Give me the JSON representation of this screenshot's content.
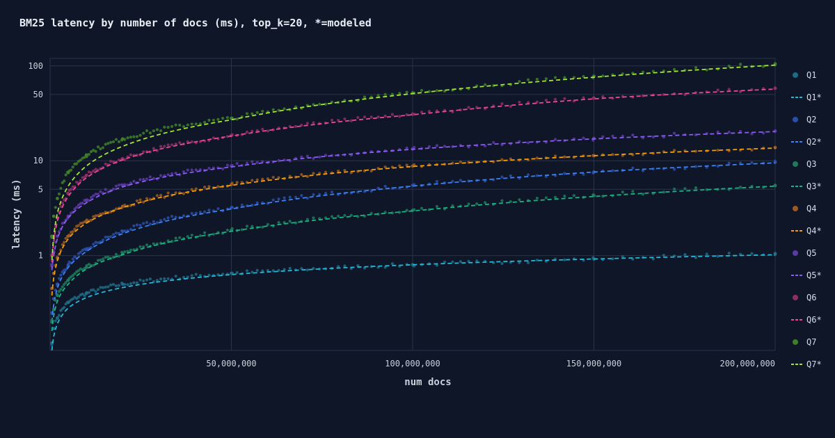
{
  "chart_data": {
    "type": "scatter",
    "title": "BM25 latency by number of docs (ms), top_k=20, *=modeled",
    "xlabel": "num docs",
    "ylabel": "latency (ms)",
    "x_scale": "linear",
    "y_scale": "log",
    "xlim": [
      0,
      200000000
    ],
    "ylim": [
      0.1,
      120
    ],
    "x_ticks": [
      50000000,
      100000000,
      150000000,
      200000000
    ],
    "x_tick_labels": [
      "50,000,000",
      "100,000,000",
      "150,000,000",
      "200,000,000"
    ],
    "y_ticks": [
      1,
      5,
      10,
      50,
      100
    ],
    "y_tick_labels": [
      "1",
      "5",
      "10",
      "50",
      "100"
    ],
    "grid": true,
    "legend_position": "right",
    "legend": [
      "Q1",
      "Q1*",
      "Q2",
      "Q2*",
      "Q3",
      "Q3*",
      "Q4",
      "Q4*",
      "Q5",
      "Q5*",
      "Q6",
      "Q6*",
      "Q7",
      "Q7*"
    ],
    "x": [
      500000,
      1000000,
      2000000,
      5000000,
      10000000,
      20000000,
      50000000,
      100000000,
      150000000,
      200000000
    ],
    "series": [
      {
        "name": "Q1",
        "kind": "points",
        "color": "#1f6b85",
        "values": [
          0.12,
          0.17,
          0.22,
          0.32,
          0.4,
          0.5,
          0.65,
          0.8,
          0.92,
          1.05
        ]
      },
      {
        "name": "Q1*",
        "kind": "modeled",
        "color": "#22b8d8",
        "values": [
          0.1,
          0.14,
          0.19,
          0.28,
          0.36,
          0.46,
          0.63,
          0.8,
          0.92,
          1.02
        ]
      },
      {
        "name": "Q2",
        "kind": "points",
        "color": "#2a4fa8",
        "values": [
          0.25,
          0.35,
          0.5,
          0.8,
          1.15,
          1.8,
          3.2,
          5.5,
          7.6,
          9.6
        ]
      },
      {
        "name": "Q2*",
        "kind": "modeled",
        "color": "#3b82f6",
        "values": [
          0.2,
          0.3,
          0.45,
          0.75,
          1.1,
          1.7,
          3.1,
          5.4,
          7.6,
          9.5
        ]
      },
      {
        "name": "Q3",
        "kind": "points",
        "color": "#1f7a5c",
        "values": [
          0.2,
          0.27,
          0.38,
          0.55,
          0.75,
          1.05,
          1.85,
          3.0,
          4.3,
          5.5
        ]
      },
      {
        "name": "Q3*",
        "kind": "modeled",
        "color": "#18b388",
        "values": [
          0.16,
          0.23,
          0.33,
          0.5,
          0.72,
          1.02,
          1.8,
          2.95,
          4.2,
          5.4
        ]
      },
      {
        "name": "Q4",
        "kind": "points",
        "color": "#9a5a22",
        "values": [
          0.45,
          0.65,
          0.95,
          1.6,
          2.3,
          3.3,
          5.6,
          8.8,
          11.3,
          13.8
        ]
      },
      {
        "name": "Q4*",
        "kind": "modeled",
        "color": "#f59e0b",
        "values": [
          0.38,
          0.58,
          0.88,
          1.5,
          2.2,
          3.2,
          5.5,
          8.7,
          11.3,
          13.6
        ]
      },
      {
        "name": "Q5",
        "kind": "points",
        "color": "#5b3aa6",
        "values": [
          0.8,
          1.1,
          1.6,
          2.6,
          3.8,
          5.5,
          8.8,
          13.3,
          17.2,
          20.5
        ]
      },
      {
        "name": "Q5*",
        "kind": "modeled",
        "color": "#8b5cf6",
        "values": [
          0.7,
          1.0,
          1.5,
          2.5,
          3.6,
          5.3,
          8.6,
          13.2,
          17.0,
          20.3
        ]
      },
      {
        "name": "Q6",
        "kind": "points",
        "color": "#8e2f63",
        "values": [
          1.0,
          1.6,
          2.5,
          4.5,
          7.0,
          10.5,
          18.5,
          31.0,
          46.0,
          58.0
        ]
      },
      {
        "name": "Q6*",
        "kind": "modeled",
        "color": "#ec4899",
        "values": [
          0.85,
          1.4,
          2.3,
          4.2,
          6.6,
          10.2,
          18.2,
          30.5,
          45.0,
          57.0
        ]
      },
      {
        "name": "Q7",
        "kind": "points",
        "color": "#3f7f2a",
        "values": [
          1.6,
          2.6,
          4.0,
          7.5,
          11.5,
          17.0,
          28.0,
          52.0,
          78.0,
          105.0
        ]
      },
      {
        "name": "Q7*",
        "kind": "modeled",
        "color": "#a3e635",
        "values": [
          0.9,
          1.6,
          2.8,
          5.4,
          8.8,
          14.2,
          27.0,
          51.0,
          76.0,
          102.0
        ]
      }
    ]
  }
}
